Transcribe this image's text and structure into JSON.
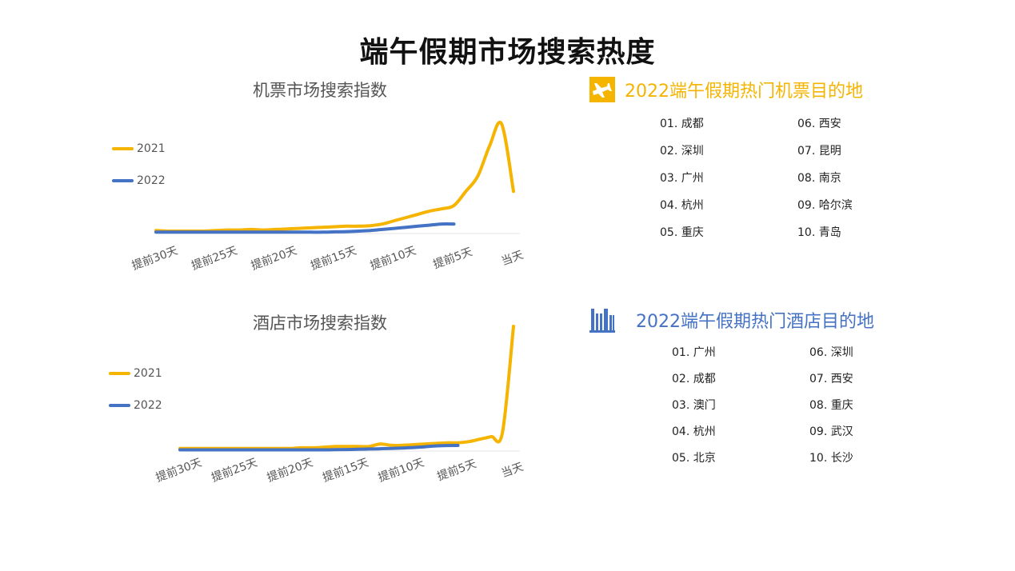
{
  "page": {
    "title": "端午假期市场搜索热度"
  },
  "colors": {
    "y2021": "#F5B400",
    "y2022": "#4472C4",
    "flight_accent": "#F5B400",
    "hotel_accent": "#4472C4"
  },
  "flight_chart_title": "机票市场搜索指数",
  "hotel_chart_title": "酒店市场搜索指数",
  "chart_data": [
    {
      "type": "line",
      "title": "机票市场搜索指数",
      "categories": [
        "提前30天",
        "提前25天",
        "提前20天",
        "提前15天",
        "提前10天",
        "提前5天",
        "当天"
      ],
      "x": [
        30,
        29,
        28,
        27,
        26,
        25,
        24,
        23,
        22,
        21,
        20,
        19,
        18,
        17,
        16,
        15,
        14,
        13,
        12,
        11,
        10,
        9,
        8,
        7,
        6,
        5,
        4,
        3,
        2,
        1,
        0
      ],
      "grid": false,
      "legend_position": "left",
      "series": [
        {
          "name": "2021",
          "color": "#F5B400",
          "values": [
            2,
            1.5,
            1.5,
            1.5,
            1.5,
            2,
            2.5,
            2.5,
            3,
            2.5,
            3,
            3.5,
            4,
            4.5,
            5,
            5.5,
            6,
            6,
            6.5,
            8,
            11,
            14,
            17,
            20,
            22,
            25,
            38,
            52,
            80,
            100,
            38
          ]
        },
        {
          "name": "2022",
          "color": "#4472C4",
          "values": [
            0.5,
            0.5,
            0.5,
            0.5,
            0.5,
            0.5,
            0.5,
            0.5,
            0.5,
            0.5,
            0.5,
            0.5,
            0.5,
            0.5,
            0.5,
            0.8,
            1,
            1.5,
            2,
            3,
            4,
            5,
            6,
            7,
            8,
            8,
            null,
            null,
            null,
            null,
            null
          ]
        }
      ]
    },
    {
      "type": "line",
      "title": "酒店市场搜索指数",
      "categories": [
        "提前30天",
        "提前25天",
        "提前20天",
        "提前15天",
        "提前10天",
        "提前5天",
        "当天"
      ],
      "x": [
        30,
        29,
        28,
        27,
        26,
        25,
        24,
        23,
        22,
        21,
        20,
        19,
        18,
        17,
        16,
        15,
        14,
        13,
        12,
        11,
        10,
        9,
        8,
        7,
        6,
        5,
        4,
        3,
        2,
        1,
        0
      ],
      "grid": false,
      "legend_position": "left",
      "series": [
        {
          "name": "2021",
          "color": "#F5B400",
          "values": [
            1.5,
            1.5,
            1.5,
            1.5,
            1.5,
            1.5,
            1.5,
            1.5,
            1.5,
            1.5,
            1.5,
            2,
            2,
            2.5,
            3,
            3,
            3,
            3,
            5,
            4,
            4,
            4.5,
            5,
            5.5,
            6,
            6,
            7,
            9,
            11,
            14,
            100
          ]
        },
        {
          "name": "2022",
          "color": "#4472C4",
          "values": [
            0.3,
            0.3,
            0.3,
            0.3,
            0.3,
            0.3,
            0.3,
            0.3,
            0.3,
            0.3,
            0.3,
            0.3,
            0.3,
            0.3,
            0.5,
            0.6,
            0.8,
            1,
            1.2,
            1.5,
            1.8,
            2.2,
            2.8,
            3.5,
            3.8,
            3.9,
            null,
            null,
            null,
            null,
            null
          ]
        }
      ]
    }
  ],
  "flight_dest": {
    "title": "2022端午假期热门机票目的地",
    "icon": "airplane-icon",
    "items": [
      "01. 成都",
      "02. 深圳",
      "03. 广州",
      "04. 杭州",
      "05. 重庆",
      "06. 西安",
      "07. 昆明",
      "08. 南京",
      "09. 哈尔滨",
      "10. 青岛"
    ]
  },
  "hotel_dest": {
    "title": "2022端午假期热门酒店目的地",
    "icon": "hotel-building-icon",
    "items": [
      "01. 广州",
      "02. 成都",
      "03. 澳门",
      "04. 杭州",
      "05. 北京",
      "06. 深圳",
      "07. 西安",
      "08. 重庆",
      "09. 武汉",
      "10. 长沙"
    ]
  }
}
